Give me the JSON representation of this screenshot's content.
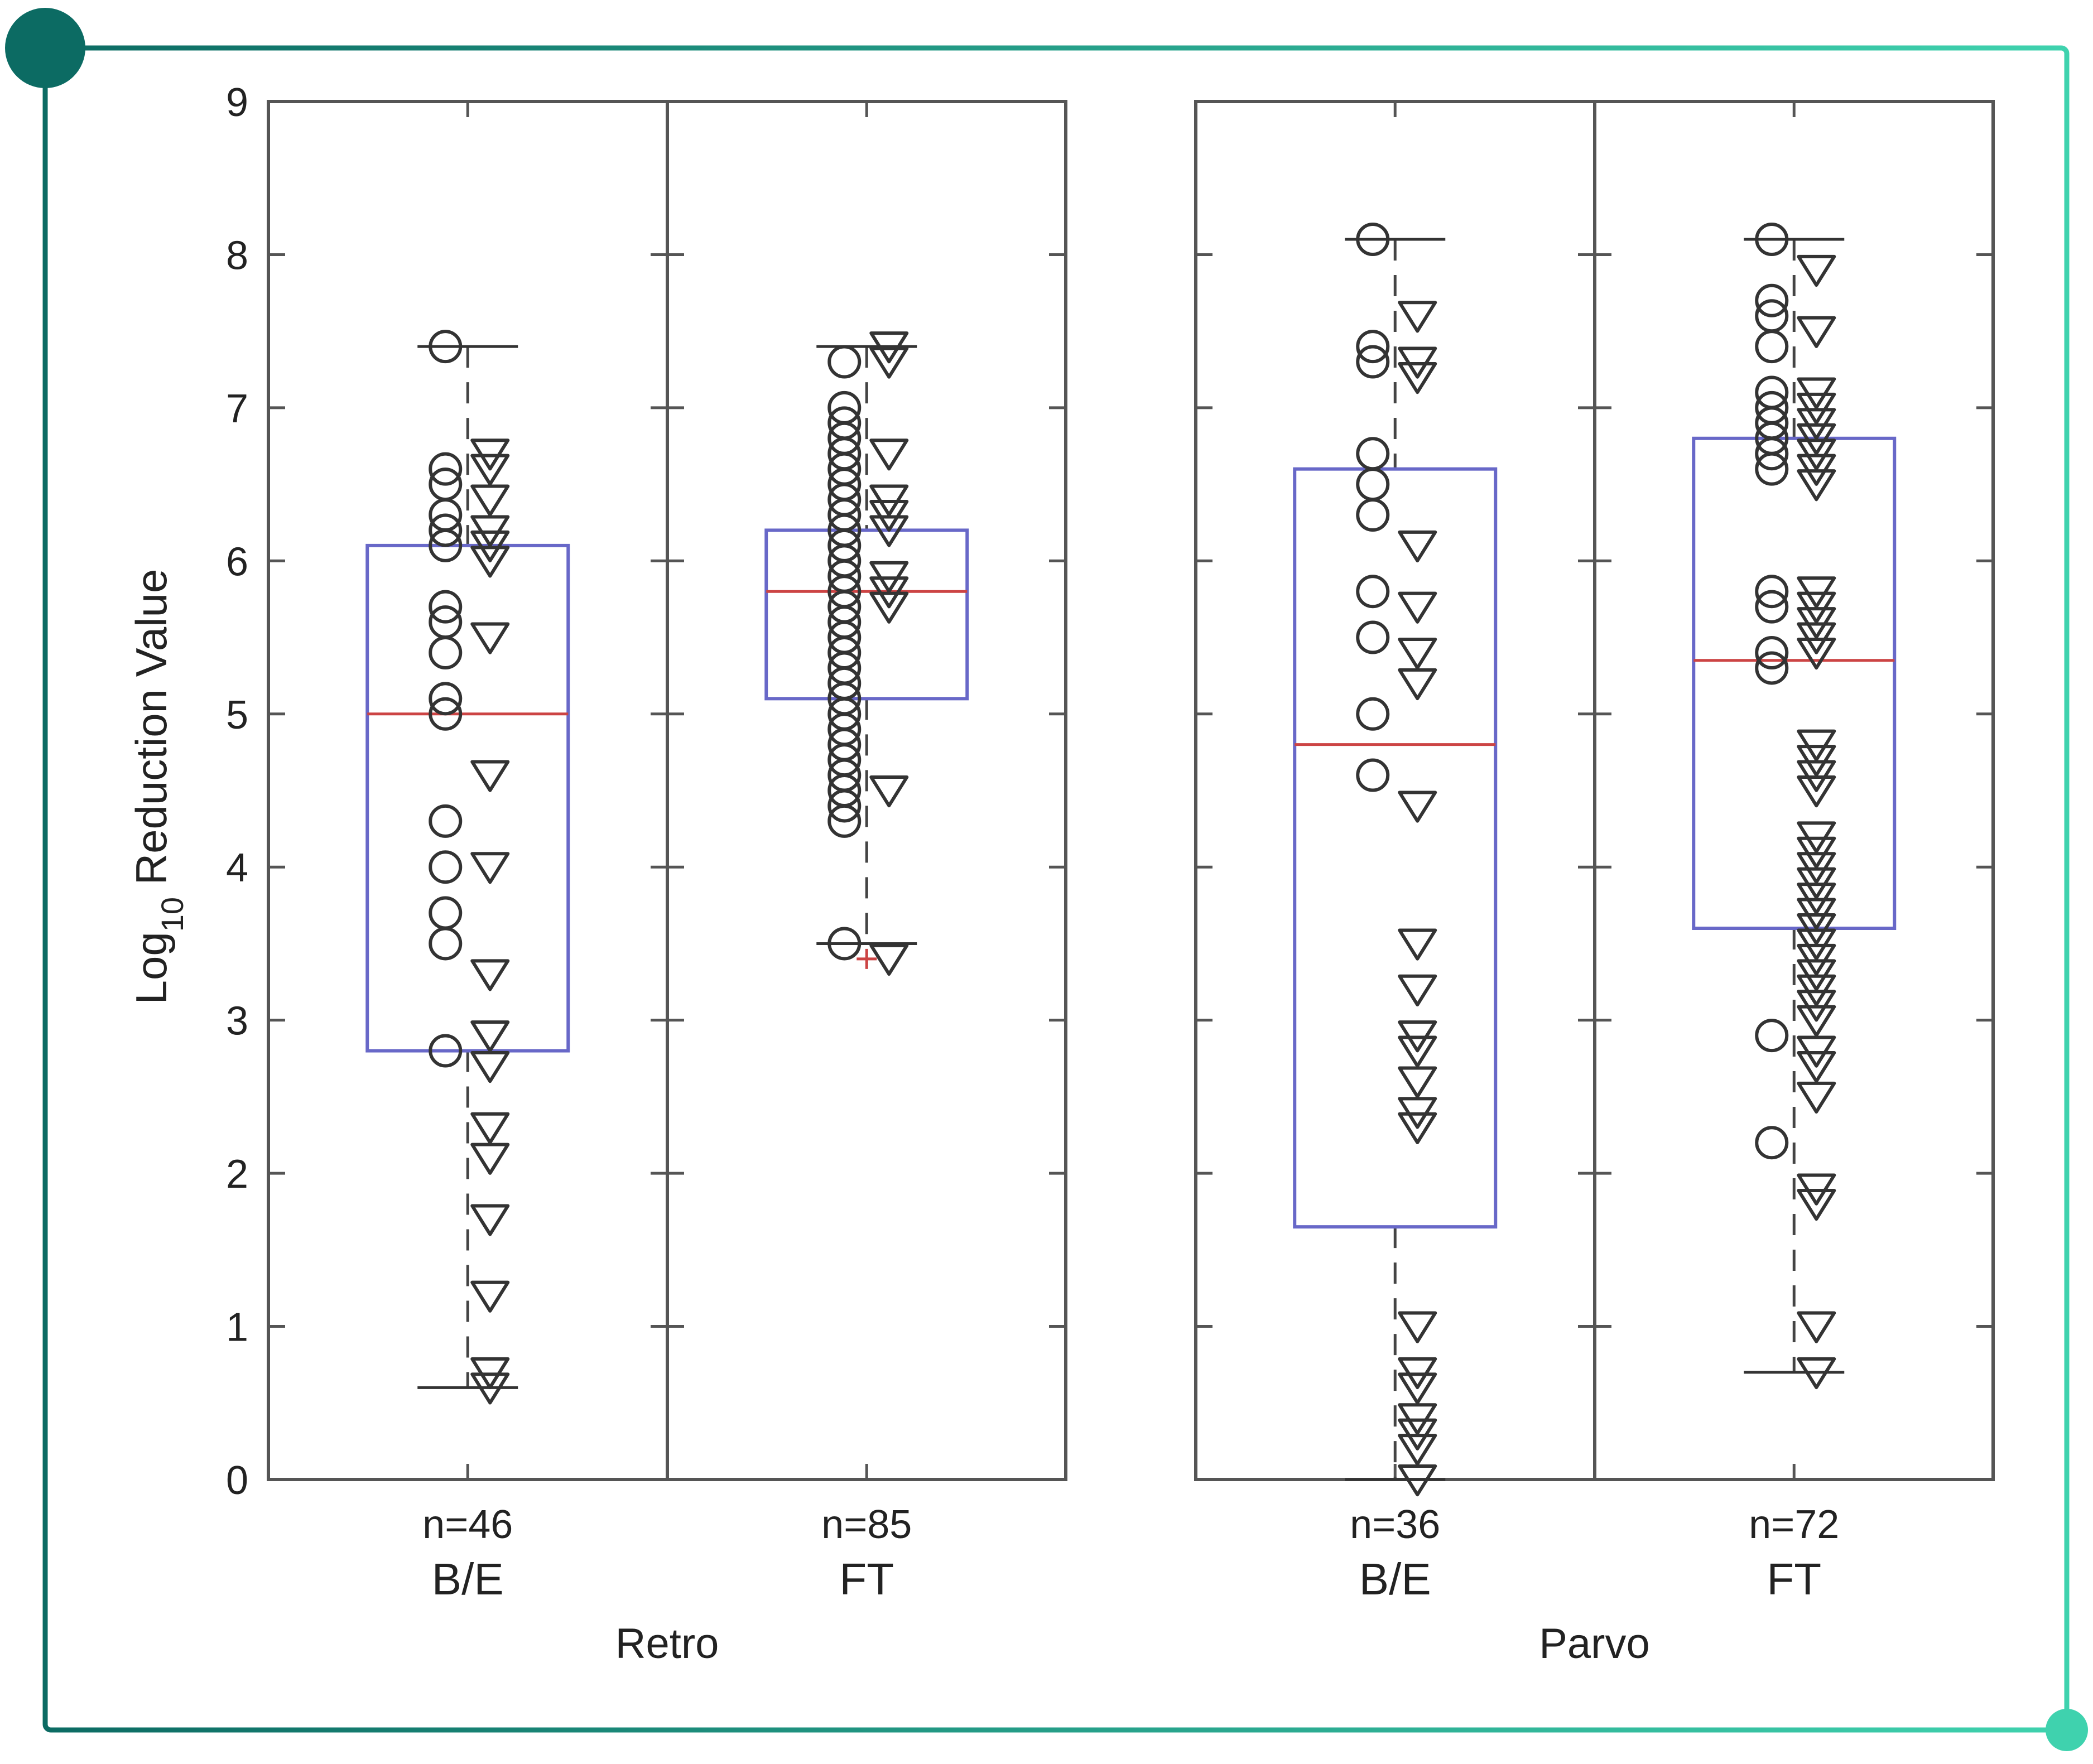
{
  "chart_data": {
    "type": "box",
    "ylabel": "Log",
    "ylabel_sub": "10",
    "ylabel_rest": " Reduction Value",
    "ylim": [
      0,
      9
    ],
    "yticks": [
      0,
      1,
      2,
      3,
      4,
      5,
      6,
      7,
      8,
      9
    ],
    "grid": false,
    "panels": [
      {
        "name": "Retro",
        "groups": [
          {
            "name": "B/E",
            "n_label": "n=46",
            "box": {
              "q1": 2.8,
              "median": 5.0,
              "q3": 6.1,
              "whisker_low": 0.6,
              "whisker_high": 7.4
            },
            "circles": [
              7.4,
              6.6,
              6.5,
              6.3,
              6.2,
              6.1,
              5.7,
              5.6,
              5.4,
              5.1,
              5.0,
              4.3,
              4.0,
              3.7,
              3.5,
              2.8
            ],
            "triangles": [
              6.7,
              6.6,
              6.4,
              6.2,
              6.1,
              6.0,
              5.5,
              4.6,
              4.0,
              3.3,
              2.9,
              2.7,
              2.3,
              2.1,
              1.7,
              1.2,
              0.7,
              0.6
            ],
            "outliers_plus": []
          },
          {
            "name": "FT",
            "n_label": "n=85",
            "box": {
              "q1": 5.1,
              "median": 5.8,
              "q3": 6.2,
              "whisker_low": 3.5,
              "whisker_high": 7.4
            },
            "circles": [
              7.3,
              7.0,
              6.9,
              6.8,
              6.7,
              6.6,
              6.5,
              6.4,
              6.3,
              6.2,
              6.1,
              6.0,
              5.9,
              5.8,
              5.7,
              5.6,
              5.5,
              5.4,
              5.3,
              5.2,
              5.1,
              5.0,
              4.9,
              4.8,
              4.7,
              4.6,
              4.5,
              4.4,
              4.3,
              3.5
            ],
            "triangles": [
              7.4,
              7.3,
              6.7,
              6.4,
              6.3,
              6.2,
              5.9,
              5.8,
              5.7,
              4.5,
              3.4
            ],
            "outliers_plus": [
              3.4
            ]
          }
        ]
      },
      {
        "name": "Parvo",
        "groups": [
          {
            "name": "B/E",
            "n_label": "n=36",
            "box": {
              "q1": 1.65,
              "median": 4.8,
              "q3": 6.6,
              "whisker_low": 0.0,
              "whisker_high": 8.1
            },
            "circles": [
              8.1,
              7.4,
              7.3,
              6.7,
              6.5,
              6.3,
              5.8,
              5.5,
              5.0,
              4.6
            ],
            "triangles": [
              7.6,
              7.3,
              7.2,
              6.1,
              5.7,
              5.4,
              5.2,
              4.4,
              3.5,
              3.2,
              2.9,
              2.8,
              2.6,
              2.4,
              2.3,
              1.0,
              0.7,
              0.6,
              0.4,
              0.3,
              0.2,
              0.0
            ],
            "outliers_plus": []
          },
          {
            "name": "FT",
            "n_label": "n=72",
            "box": {
              "q1": 3.6,
              "median": 5.35,
              "q3": 6.8,
              "whisker_low": 0.7,
              "whisker_high": 8.1
            },
            "circles": [
              8.1,
              7.7,
              7.6,
              7.4,
              7.1,
              7.0,
              6.9,
              6.8,
              6.7,
              6.6,
              5.8,
              5.7,
              5.4,
              5.3,
              2.9,
              2.2
            ],
            "triangles": [
              7.9,
              7.5,
              7.1,
              7.0,
              6.9,
              6.8,
              6.7,
              6.6,
              6.5,
              5.8,
              5.7,
              5.6,
              5.5,
              5.4,
              4.8,
              4.7,
              4.6,
              4.5,
              4.2,
              4.1,
              4.0,
              3.9,
              3.8,
              3.7,
              3.6,
              3.5,
              3.4,
              3.3,
              3.2,
              3.1,
              3.0,
              2.8,
              2.7,
              2.5,
              1.9,
              1.8,
              1.0,
              0.7
            ],
            "outliers_plus": []
          }
        ]
      }
    ]
  },
  "colors": {
    "frame_start": "#0c6b63",
    "frame_end": "#3fd2ae",
    "axis": "#555555",
    "box": "#6868c8",
    "median": "#cc4444",
    "marker": "#333333"
  }
}
